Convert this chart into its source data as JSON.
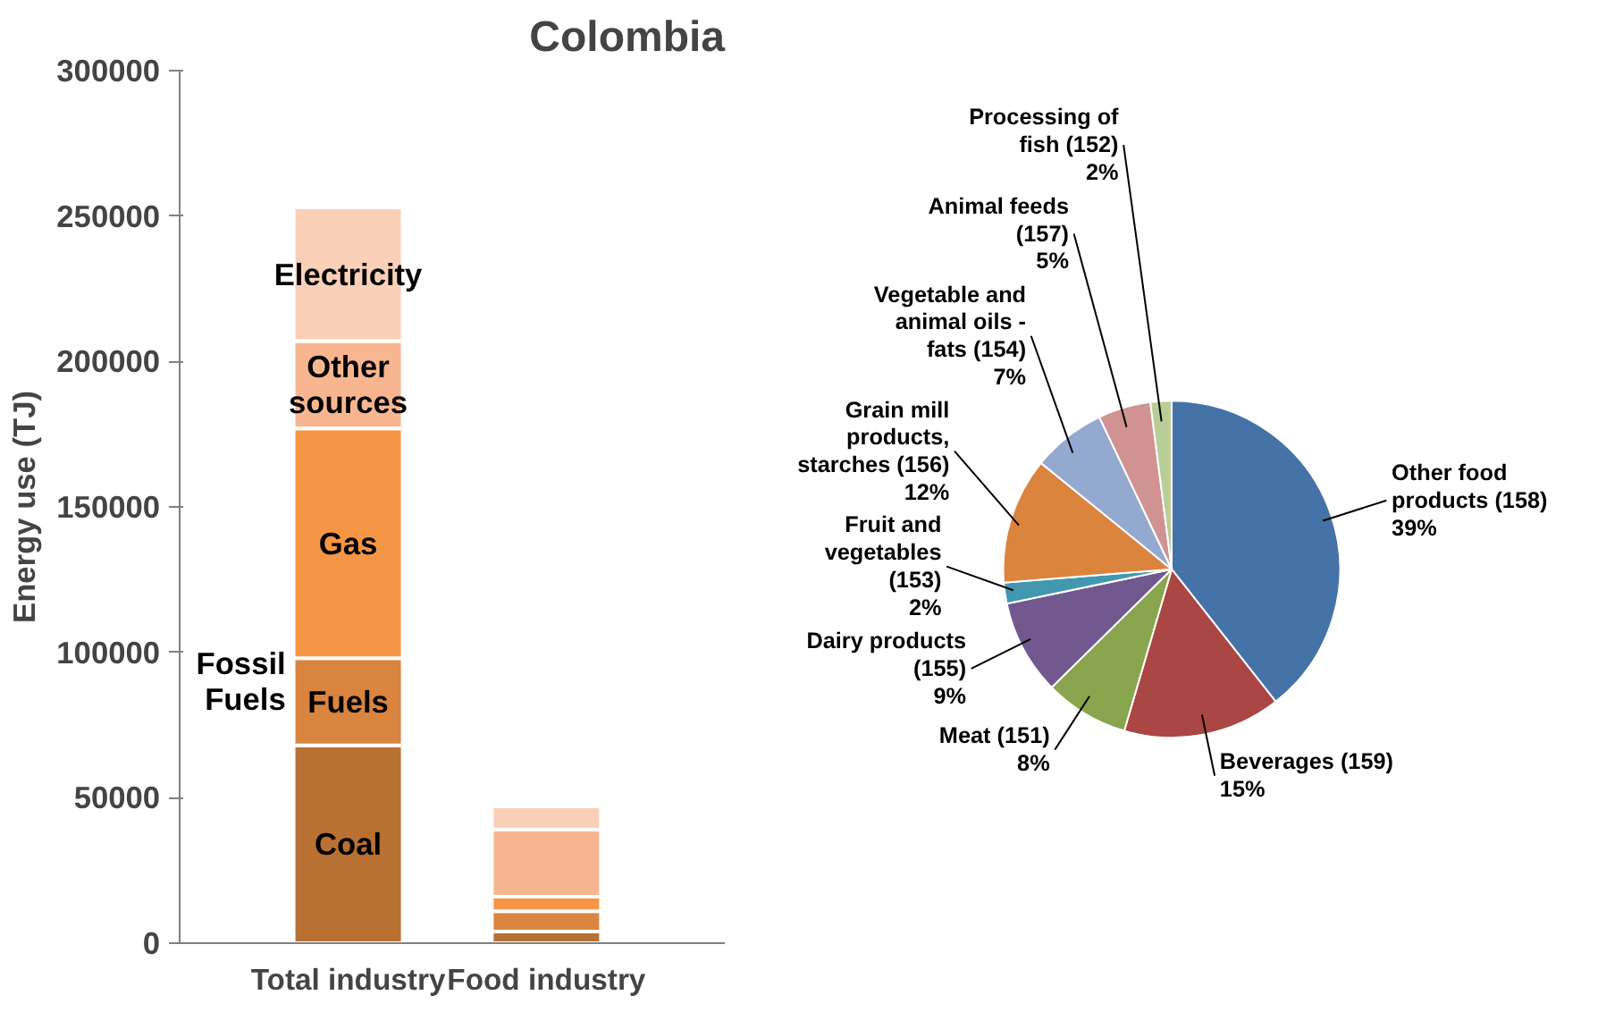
{
  "chart_data": [
    {
      "type": "bar",
      "title": "Colombia",
      "ylabel": "Energy use (TJ)",
      "stacked": true,
      "categories": [
        "Total industry",
        "Food industry"
      ],
      "series": [
        {
          "name": "Coal",
          "color": "#b87033",
          "values": [
            68000,
            4000
          ]
        },
        {
          "name": "Fuels",
          "color": "#d9843f",
          "values": [
            30000,
            7000
          ]
        },
        {
          "name": "Gas",
          "color": "#f59646",
          "values": [
            79000,
            5000
          ]
        },
        {
          "name": "Other sources",
          "color": "#f8b690",
          "values": [
            30000,
            23000
          ]
        },
        {
          "name": "Electricity",
          "color": "#fbd0b9",
          "values": [
            46000,
            8000
          ]
        }
      ],
      "annotations": [
        "Fossil Fuels"
      ],
      "ylim": [
        0,
        300000
      ],
      "yticks": [
        0,
        50000,
        100000,
        150000,
        200000,
        250000,
        300000
      ],
      "grid": false
    },
    {
      "type": "pie",
      "categories": [
        "Other food products (158)",
        "Beverages (159)",
        "Meat (151)",
        "Dairy products (155)",
        "Fruit and vegetables (153)",
        "Grain mill products, starches (156)",
        "Vegetable and animal oils - fats (154)",
        "Animal feeds (157)",
        "Processing of fish (152)"
      ],
      "values": [
        39,
        15,
        8,
        9,
        2,
        12,
        7,
        5,
        2
      ],
      "value_labels": [
        "39%",
        "15%",
        "8%",
        "9%",
        "2%",
        "12%",
        "7%",
        "5%",
        "2%"
      ],
      "colors": [
        "#4572a7",
        "#aa4643",
        "#89a54e",
        "#71588f",
        "#4198af",
        "#db843d",
        "#93a9cf",
        "#d09392",
        "#b9cd96"
      ]
    }
  ]
}
